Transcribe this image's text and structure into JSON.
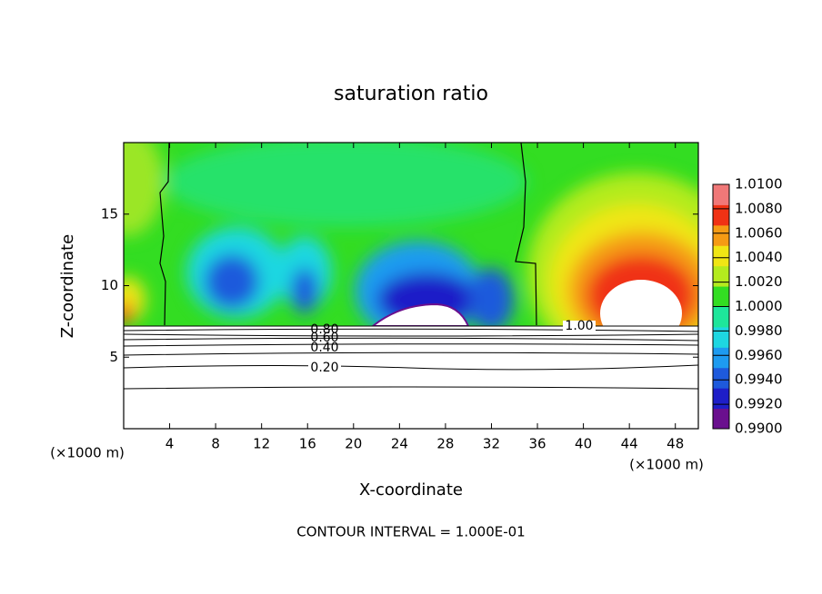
{
  "chart_data": {
    "type": "contour",
    "title": "saturation ratio",
    "x_label": "X-coordinate",
    "y_label": "Z-coordinate",
    "x_unit": "(×1000 m)",
    "y_unit": "(×1000 m)",
    "xlim": [
      0,
      50
    ],
    "ylim": [
      0,
      20
    ],
    "xticks": [
      4,
      8,
      12,
      16,
      20,
      24,
      28,
      32,
      36,
      40,
      44,
      48
    ],
    "yticks": [
      5,
      10,
      15
    ],
    "colorbar": {
      "lim": [
        0.99,
        1.01
      ],
      "ticks": [
        {
          "value": 0.99,
          "label": "0.9900"
        },
        {
          "value": 0.992,
          "label": "0.9920"
        },
        {
          "value": 0.994,
          "label": "0.9940"
        },
        {
          "value": 0.996,
          "label": "0.9960"
        },
        {
          "value": 0.998,
          "label": "0.9980"
        },
        {
          "value": 1.0,
          "label": "1.0000"
        },
        {
          "value": 1.002,
          "label": "1.0020"
        },
        {
          "value": 1.004,
          "label": "1.0040"
        },
        {
          "value": 1.006,
          "label": "1.0060"
        },
        {
          "value": 1.008,
          "label": "1.0080"
        },
        {
          "value": 1.01,
          "label": "1.0100"
        }
      ],
      "colors": [
        "#6a0f8e",
        "#1e1ec8",
        "#1e5adc",
        "#1e9bf0",
        "#1ed7e1",
        "#1ee69b",
        "#33dd22",
        "#b4eb1e",
        "#f0e614",
        "#f59b14",
        "#f03214",
        "#f07878"
      ]
    },
    "contour_labels": [
      {
        "value": 0.8,
        "label": "0.80"
      },
      {
        "value": 0.6,
        "label": "0.60"
      },
      {
        "value": 0.4,
        "label": "0.40"
      },
      {
        "value": 0.2,
        "label": "0.20"
      },
      {
        "value": 1.0,
        "label": "1.00"
      }
    ],
    "footer": "CONTOUR INTERVAL = 1.000E-01"
  }
}
